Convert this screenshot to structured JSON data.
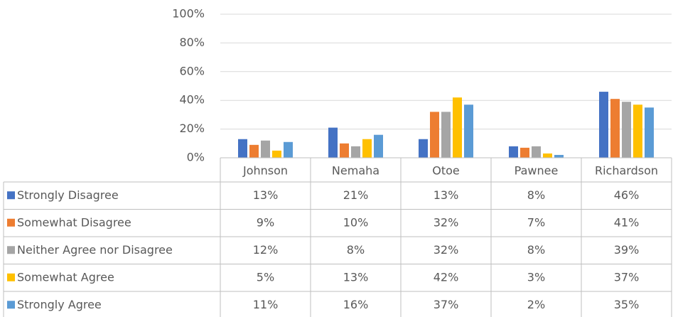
{
  "chart_data": {
    "type": "bar",
    "categories": [
      "Johnson",
      "Nemaha",
      "Otoe",
      "Pawnee",
      "Richardson"
    ],
    "series": [
      {
        "name": "Strongly Disagree",
        "color": "#4472c4",
        "values": [
          13,
          21,
          13,
          8,
          46
        ],
        "value_labels": [
          "13%",
          "21%",
          "13%",
          "8%",
          "46%"
        ]
      },
      {
        "name": "Somewhat Disagree",
        "color": "#ed7d31",
        "values": [
          9,
          10,
          32,
          7,
          41
        ],
        "value_labels": [
          "9%",
          "10%",
          "32%",
          "7%",
          "41%"
        ]
      },
      {
        "name": "Neither Agree nor Disagree",
        "color": "#a5a5a5",
        "values": [
          12,
          8,
          32,
          8,
          39
        ],
        "value_labels": [
          "12%",
          "8%",
          "32%",
          "8%",
          "39%"
        ]
      },
      {
        "name": "Somewhat Agree",
        "color": "#ffc000",
        "values": [
          5,
          13,
          42,
          3,
          37
        ],
        "value_labels": [
          "5%",
          "13%",
          "42%",
          "3%",
          "37%"
        ]
      },
      {
        "name": "Strongly Agree",
        "color": "#5b9bd5",
        "values": [
          11,
          16,
          37,
          2,
          35
        ],
        "value_labels": [
          "11%",
          "16%",
          "37%",
          "2%",
          "35%"
        ]
      }
    ],
    "ylim": [
      0,
      100
    ],
    "yticks": [
      {
        "value": 0,
        "label": "0%"
      },
      {
        "value": 20,
        "label": "20%"
      },
      {
        "value": 40,
        "label": "40%"
      },
      {
        "value": 60,
        "label": "60%"
      },
      {
        "value": 80,
        "label": "80%"
      },
      {
        "value": 100,
        "label": "100%"
      }
    ],
    "grid": true
  }
}
